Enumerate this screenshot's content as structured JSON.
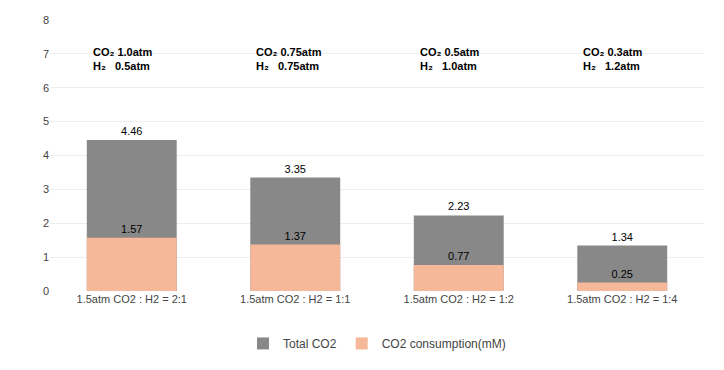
{
  "chart_data": {
    "type": "bar",
    "categories": [
      "1.5atm CO2 : H2 = 2:1",
      "1.5atm CO2 : H2 = 1:1",
      "1.5atm CO2 : H2 = 1:2",
      "1.5atm CO2 : H2 = 1:4"
    ],
    "series": [
      {
        "name": "Total CO2",
        "color": "#888888",
        "values": [
          4.46,
          3.35,
          2.23,
          1.34
        ]
      },
      {
        "name": "CO2 consumption(mM)",
        "color": "#F5B899",
        "values": [
          1.57,
          1.37,
          0.77,
          0.25
        ]
      }
    ],
    "stacked": false,
    "data_labels": true,
    "annotations": [
      "CO₂ 1.0atm\nH₂   0.5atm",
      "CO₂ 0.75atm\nH₂   0.75atm",
      "CO₂ 0.5atm\nH₂   1.0atm",
      "CO₂ 0.3atm\nH₂   1.2atm"
    ],
    "ylim": [
      0,
      8
    ],
    "yticks": [
      0,
      1,
      2,
      3,
      4,
      5,
      6,
      7,
      8
    ],
    "grid": true,
    "legend": "bottom"
  }
}
